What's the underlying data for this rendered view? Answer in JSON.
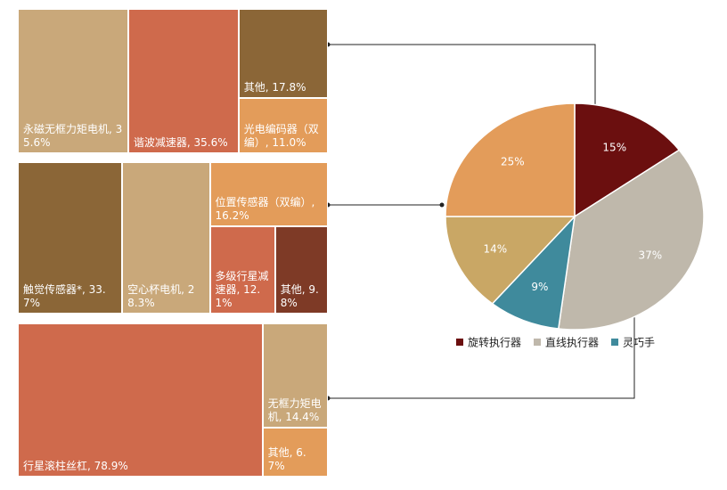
{
  "chart_data": [
    {
      "type": "treemap",
      "labels": [
        "永磁无框力矩电机, 35.6%",
        "谐波减速器, 35.6%",
        "其他, 17.8%",
        "光电编码器（双编）, 11.0%"
      ],
      "values": [
        35.6,
        35.6,
        17.8,
        11.0
      ],
      "colors": [
        "#c9a87a",
        "#cf6a4c",
        "#8b6637",
        "#e39c5a"
      ]
    },
    {
      "type": "treemap",
      "labels": [
        "触觉传感器*, 33.7%",
        "空心杯电机, 28.3%",
        "位置传感器（双编）, 16.2%",
        "多级行星减速器, 12.1%",
        "其他, 9.8%"
      ],
      "values": [
        33.7,
        28.3,
        16.2,
        12.1,
        9.8
      ],
      "colors": [
        "#8b6637",
        "#c9a87a",
        "#e39c5a",
        "#cf6a4c",
        "#7e3a26"
      ]
    },
    {
      "type": "treemap",
      "labels": [
        "行星滚柱丝杠, 78.9%",
        "无框力矩电机, 14.4%",
        "其他, 6.7%"
      ],
      "values": [
        78.9,
        14.4,
        6.7
      ],
      "colors": [
        "#cf6a4c",
        "#c9a87a",
        "#e39c5a"
      ]
    },
    {
      "type": "pie",
      "categories": [
        "旋转执行器",
        "直线执行器",
        "灵巧手",
        null,
        null
      ],
      "values": [
        15,
        37,
        9,
        14,
        25
      ],
      "value_labels": [
        "15%",
        "37%",
        "9%",
        "14%",
        "25%"
      ],
      "colors": [
        "#6b0f0f",
        "#bfb8ab",
        "#3f8a9c",
        "#c9a765",
        "#e39c5a"
      ]
    }
  ]
}
